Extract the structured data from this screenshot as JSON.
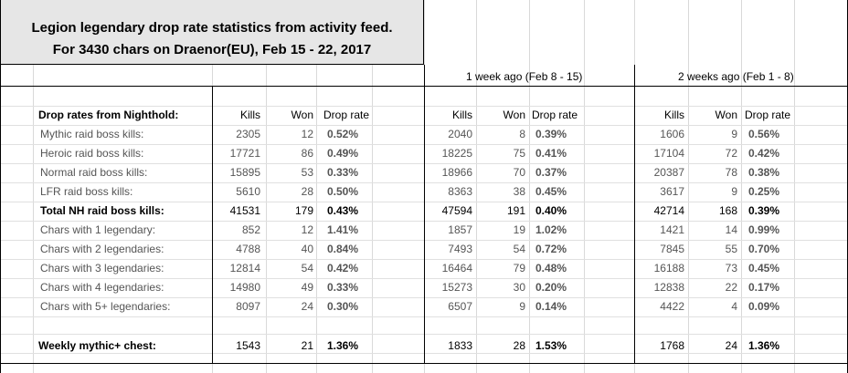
{
  "title": {
    "line1": "Legion legendary drop rate statistics from activity feed.",
    "line2": "For 3430 chars on Draenor(EU), Feb 15 - 22, 2017"
  },
  "periods": {
    "one_week": "1 week ago (Feb 8 - 15)",
    "two_weeks": "2 weeks ago (Feb 1 - 8)"
  },
  "section_label": "Drop rates from Nighthold:",
  "headers": {
    "kills": "Kills",
    "won": "Won",
    "rate": "Drop rate"
  },
  "rows": [
    {
      "label": "Mythic raid boss kills:",
      "bold": false,
      "g1": [
        "2305",
        "12",
        "0.52%"
      ],
      "g2": [
        "2040",
        "8",
        "0.39%"
      ],
      "g3": [
        "1606",
        "9",
        "0.56%"
      ]
    },
    {
      "label": "Heroic raid boss kills:",
      "bold": false,
      "g1": [
        "17721",
        "86",
        "0.49%"
      ],
      "g2": [
        "18225",
        "75",
        "0.41%"
      ],
      "g3": [
        "17104",
        "72",
        "0.42%"
      ]
    },
    {
      "label": "Normal raid boss kills:",
      "bold": false,
      "g1": [
        "15895",
        "53",
        "0.33%"
      ],
      "g2": [
        "18966",
        "70",
        "0.37%"
      ],
      "g3": [
        "20387",
        "78",
        "0.38%"
      ]
    },
    {
      "label": "LFR raid boss kills:",
      "bold": false,
      "g1": [
        "5610",
        "28",
        "0.50%"
      ],
      "g2": [
        "8363",
        "38",
        "0.45%"
      ],
      "g3": [
        "3617",
        "9",
        "0.25%"
      ]
    },
    {
      "label": "Total NH raid boss kills:",
      "bold": true,
      "g1": [
        "41531",
        "179",
        "0.43%"
      ],
      "g2": [
        "47594",
        "191",
        "0.40%"
      ],
      "g3": [
        "42714",
        "168",
        "0.39%"
      ]
    },
    {
      "label": "Chars with 1 legendary:",
      "bold": false,
      "g1": [
        "852",
        "12",
        "1.41%"
      ],
      "g2": [
        "1857",
        "19",
        "1.02%"
      ],
      "g3": [
        "1421",
        "14",
        "0.99%"
      ]
    },
    {
      "label": "Chars with 2 legendaries:",
      "bold": false,
      "g1": [
        "4788",
        "40",
        "0.84%"
      ],
      "g2": [
        "7493",
        "54",
        "0.72%"
      ],
      "g3": [
        "7845",
        "55",
        "0.70%"
      ]
    },
    {
      "label": "Chars with 3 legendaries:",
      "bold": false,
      "g1": [
        "12814",
        "54",
        "0.42%"
      ],
      "g2": [
        "16464",
        "79",
        "0.48%"
      ],
      "g3": [
        "16188",
        "73",
        "0.45%"
      ]
    },
    {
      "label": "Chars with 4 legendaries:",
      "bold": false,
      "g1": [
        "14980",
        "49",
        "0.33%"
      ],
      "g2": [
        "15273",
        "30",
        "0.20%"
      ],
      "g3": [
        "12838",
        "22",
        "0.17%"
      ]
    },
    {
      "label": "Chars with 5+ legendaries:",
      "bold": false,
      "g1": [
        "8097",
        "24",
        "0.30%"
      ],
      "g2": [
        "6507",
        "9",
        "0.14%"
      ],
      "g3": [
        "4422",
        "4",
        "0.09%"
      ]
    }
  ],
  "chest": {
    "label": "Weekly mythic+ chest:",
    "g1": [
      "1543",
      "21",
      "1.36%"
    ],
    "g2": [
      "1833",
      "28",
      "1.53%"
    ],
    "g3": [
      "1768",
      "24",
      "1.36%"
    ]
  }
}
